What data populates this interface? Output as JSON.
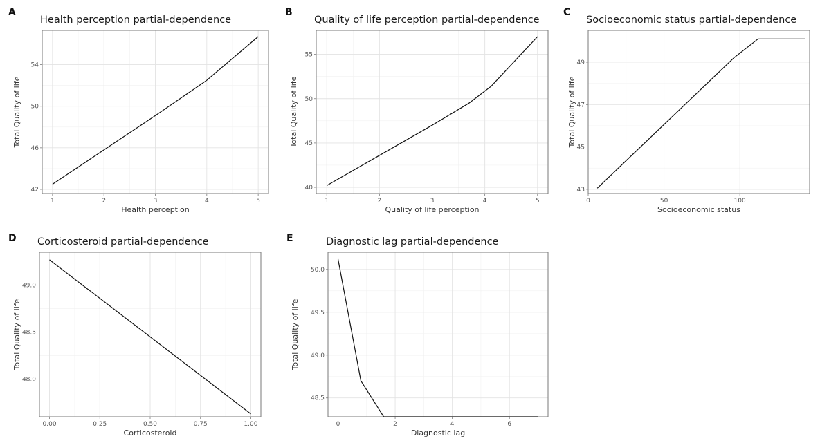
{
  "chart_data": [
    {
      "panel": "A",
      "type": "line",
      "title": "Health perception partial-dependence",
      "xlabel": "Health perception",
      "ylabel": "Total Quality of life",
      "xlim": [
        0.8,
        5.2
      ],
      "ylim": [
        41.6,
        57.3
      ],
      "xticks": [
        1,
        2,
        3,
        4,
        5
      ],
      "yticks": [
        42,
        46,
        50,
        54
      ],
      "grid": true,
      "series": [
        {
          "x": [
            1,
            2,
            3,
            4,
            4.12,
            5
          ],
          "y": [
            42.5,
            45.8,
            49.1,
            52.5,
            53.0,
            56.7
          ]
        }
      ]
    },
    {
      "panel": "B",
      "type": "line",
      "title": "Quality of life perception partial-dependence",
      "xlabel": "Quality of life perception",
      "ylabel": "Total Quality of life",
      "xlim": [
        0.8,
        5.2
      ],
      "ylim": [
        39.3,
        57.7
      ],
      "xticks": [
        1,
        2,
        3,
        4,
        5
      ],
      "yticks": [
        40,
        45,
        50,
        55
      ],
      "grid": true,
      "series": [
        {
          "x": [
            1,
            2,
            3,
            3.7,
            4.12,
            5
          ],
          "y": [
            40.2,
            43.6,
            47.0,
            49.5,
            51.4,
            57.0
          ]
        }
      ]
    },
    {
      "panel": "C",
      "type": "line",
      "title": "Socioeconomic status partial-dependence",
      "xlabel": "Socioeconomic status",
      "ylabel": "Total Quality of life",
      "xlim": [
        0,
        146
      ],
      "ylim": [
        42.8,
        50.5
      ],
      "xticks": [
        0,
        50,
        100
      ],
      "yticks": [
        43,
        45,
        47,
        49
      ],
      "grid": true,
      "series": [
        {
          "x": [
            6,
            96,
            112,
            143
          ],
          "y": [
            43.05,
            49.2,
            50.1,
            50.1
          ]
        }
      ]
    },
    {
      "panel": "D",
      "type": "line",
      "title": "Corticosteroid partial-dependence",
      "xlabel": "Corticosteroid",
      "ylabel": "Total Quality of life",
      "xlim": [
        -0.05,
        1.05
      ],
      "ylim": [
        47.6,
        49.35
      ],
      "xticks": [
        "0.00",
        "0.25",
        "0.50",
        "0.75",
        "1.00"
      ],
      "yticks": [
        "48.0",
        "48.5",
        "49.0"
      ],
      "grid": true,
      "series": [
        {
          "x": [
            0,
            1
          ],
          "y": [
            49.27,
            47.63
          ]
        }
      ]
    },
    {
      "panel": "E",
      "type": "line",
      "title": "Diagnostic lag partial-dependence",
      "xlabel": "Diagnostic lag",
      "ylabel": "Total Quality of life",
      "xlim": [
        -0.35,
        7.35
      ],
      "ylim": [
        48.28,
        50.2
      ],
      "xticks": [
        0,
        2,
        4,
        6
      ],
      "yticks": [
        "48.5",
        "49.0",
        "49.5",
        "50.0"
      ],
      "grid": true,
      "series": [
        {
          "x": [
            0,
            0.8,
            1.6,
            7
          ],
          "y": [
            50.12,
            48.7,
            48.28,
            48.28
          ]
        }
      ]
    }
  ]
}
